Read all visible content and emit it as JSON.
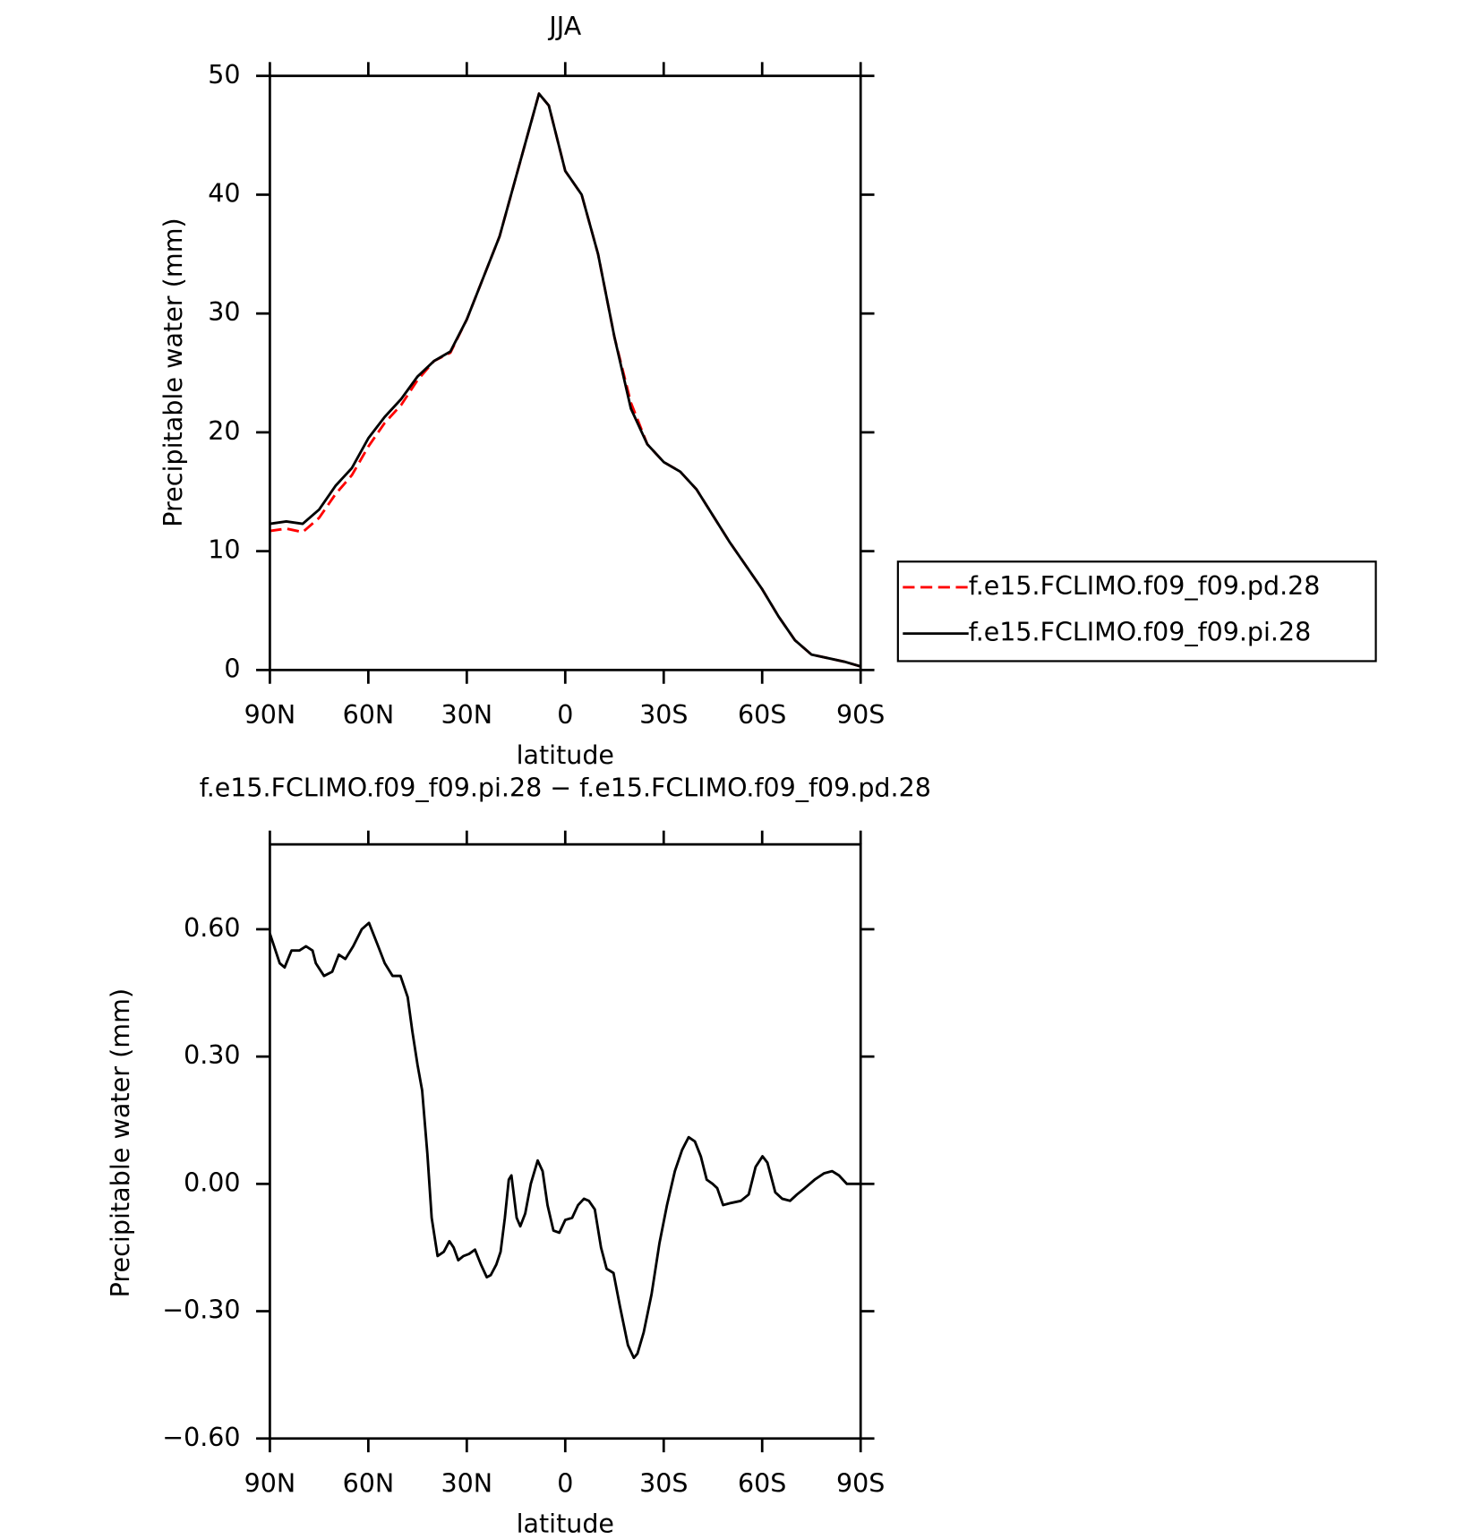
{
  "chart_data": [
    {
      "type": "line",
      "title": "JJA",
      "x_label": "latitude",
      "y_label": "Precipitable water (mm)",
      "x": [
        90,
        85,
        80,
        75,
        70,
        65,
        60,
        55,
        50,
        45,
        40,
        35,
        30,
        25,
        20,
        15,
        10,
        8,
        5,
        0,
        -5,
        -10,
        -15,
        -20,
        -25,
        -30,
        -35,
        -40,
        -45,
        -50,
        -55,
        -60,
        -65,
        -70,
        -75,
        -80,
        -85,
        -90
      ],
      "series": [
        {
          "name": "f.e15.FCLIMO.f09_f09.pd.28",
          "color": "#ff0000",
          "dashed": true,
          "values": [
            11.7,
            11.9,
            11.6,
            12.8,
            14.8,
            16.4,
            18.8,
            20.8,
            22.3,
            24.4,
            26,
            26.7,
            29.5,
            33,
            36.5,
            41.5,
            46.5,
            48.5,
            47.5,
            42,
            40,
            35,
            28,
            22.5,
            19,
            17.5,
            16.7,
            15.2,
            13,
            10.8,
            8.8,
            6.8,
            4.5,
            2.5,
            1.3,
            1.0,
            0.7,
            0.3
          ]
        },
        {
          "name": "f.e15.FCLIMO.f09_f09.pi.28",
          "color": "#000000",
          "dashed": false,
          "values": [
            12.3,
            12.5,
            12.3,
            13.5,
            15.5,
            17,
            19.5,
            21.3,
            22.8,
            24.7,
            26,
            26.8,
            29.5,
            33,
            36.5,
            41.5,
            46.5,
            48.5,
            47.5,
            42,
            40,
            35,
            28,
            22,
            19,
            17.5,
            16.7,
            15.2,
            13,
            10.8,
            8.8,
            6.8,
            4.5,
            2.5,
            1.3,
            1.0,
            0.7,
            0.3
          ]
        }
      ],
      "xlim": [
        90,
        -90
      ],
      "xticks": [
        {
          "value": 90,
          "label": "90N"
        },
        {
          "value": 60,
          "label": "60N"
        },
        {
          "value": 30,
          "label": "30N"
        },
        0,
        {
          "value": -30,
          "label": "30S"
        },
        {
          "value": -60,
          "label": "60S"
        },
        {
          "value": -90,
          "label": "90S"
        }
      ],
      "ylim": [
        0,
        50
      ],
      "yticks": [
        0,
        10,
        20,
        30,
        40,
        50
      ],
      "legend": "outside-right"
    },
    {
      "type": "line",
      "title": "f.e15.FCLIMO.f09_f09.pi.28 − f.e15.FCLIMO.f09_f09.pd.28",
      "x_label": "latitude",
      "y_label": "Precipitable water (mm)",
      "x": [
        90,
        87,
        85.5,
        83.4,
        81,
        79,
        77,
        76,
        73.5,
        71,
        69,
        67,
        64.6,
        62,
        59.8,
        57,
        55,
        52.6,
        50.2,
        48,
        46.6,
        45,
        43.6,
        42,
        40.7,
        38.9,
        37,
        35.3,
        34,
        32.6,
        31,
        29.3,
        27.5,
        25.7,
        23.9,
        22.7,
        21,
        19.7,
        18.4,
        17.2,
        16.4,
        14.8,
        13.7,
        12.2,
        10.5,
        8.4,
        6.9,
        5.4,
        3.6,
        1.8,
        0,
        -2.1,
        -3.9,
        -5.7,
        -7.2,
        -9,
        -10.9,
        -12.6,
        -14.7,
        -16.7,
        -19.1,
        -20.9,
        -22,
        -23.9,
        -26.3,
        -28.7,
        -31,
        -33.4,
        -35.6,
        -37.6,
        -39.5,
        -41.3,
        -43.1,
        -44.9,
        -46.3,
        -48.1,
        -50.5,
        -53.5,
        -55.9,
        -58,
        -60.1,
        -61.6,
        -64,
        -66.1,
        -68.5,
        -70.6,
        -73,
        -76,
        -78.9,
        -81.3,
        -83.4,
        -85.8,
        -87.8,
        -90
      ],
      "series": [
        {
          "color": "#000000",
          "dashed": false,
          "values": [
            0.59,
            0.52,
            0.51,
            0.55,
            0.55,
            0.56,
            0.55,
            0.52,
            0.49,
            0.5,
            0.54,
            0.53,
            0.56,
            0.6,
            0.615,
            0.56,
            0.52,
            0.49,
            0.49,
            0.44,
            0.36,
            0.28,
            0.22,
            0.07,
            -0.08,
            -0.17,
            -0.16,
            -0.135,
            -0.15,
            -0.18,
            -0.17,
            -0.165,
            -0.155,
            -0.19,
            -0.22,
            -0.215,
            -0.19,
            -0.16,
            -0.08,
            0.01,
            0.02,
            -0.08,
            -0.1,
            -0.07,
            0.0,
            0.055,
            0.03,
            -0.05,
            -0.11,
            -0.115,
            -0.085,
            -0.08,
            -0.05,
            -0.035,
            -0.04,
            -0.06,
            -0.15,
            -0.2,
            -0.21,
            -0.29,
            -0.38,
            -0.41,
            -0.4,
            -0.35,
            -0.26,
            -0.14,
            -0.05,
            0.03,
            0.08,
            0.11,
            0.1,
            0.065,
            0.01,
            0.0,
            -0.01,
            -0.05,
            -0.045,
            -0.04,
            -0.025,
            0.04,
            0.065,
            0.05,
            -0.02,
            -0.035,
            -0.04,
            -0.025,
            -0.01,
            0.01,
            0.025,
            0.03,
            0.02,
            0.0,
            0.0,
            0.0
          ]
        }
      ],
      "xlim": [
        90,
        -90
      ],
      "xticks": [
        {
          "value": 90,
          "label": "90N"
        },
        {
          "value": 60,
          "label": "60N"
        },
        {
          "value": 30,
          "label": "30N"
        },
        0,
        {
          "value": -30,
          "label": "30S"
        },
        {
          "value": -60,
          "label": "60S"
        },
        {
          "value": -90,
          "label": "90S"
        }
      ],
      "ylim": [
        -0.6,
        0.8
      ],
      "yticks": [
        {
          "value": -0.6,
          "label": "−0.60"
        },
        {
          "value": -0.3,
          "label": "−0.30"
        },
        {
          "value": 0,
          "label": "0.00"
        },
        {
          "value": 0.3,
          "label": "0.30"
        },
        {
          "value": 0.6,
          "label": "0.60"
        }
      ]
    }
  ]
}
